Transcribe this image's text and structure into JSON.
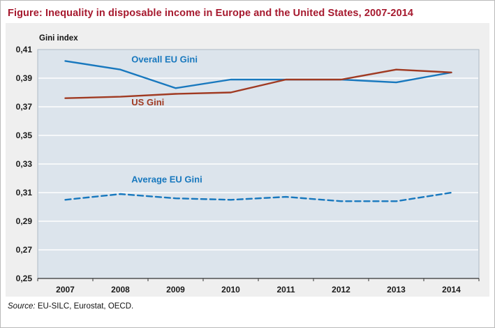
{
  "figure": {
    "title": "Figure: Inequality in disposable income in Europe and the United States, 2007-2014",
    "source_label": "Source:",
    "source_text": " EU-SILC, Eurostat, OECD."
  },
  "chart_data": {
    "type": "line",
    "title": "Figure: Inequality in disposable income in Europe and the United States, 2007-2014",
    "ylabel": "Gini index",
    "xlabel": "",
    "categories": [
      "2007",
      "2008",
      "2009",
      "2010",
      "2011",
      "2012",
      "2013",
      "2014"
    ],
    "ylim": [
      0.25,
      0.41
    ],
    "ytick_step": 0.02,
    "ytick_labels": [
      "0,25",
      "0,27",
      "0,29",
      "0,31",
      "0,33",
      "0,35",
      "0,37",
      "0,39",
      "0,41"
    ],
    "grid": "horizontal-white",
    "legend_position": "inline-labels",
    "plot_bg": "#dce4ec",
    "plot_border": "#aebac4",
    "panel_bg": "#efefef",
    "axis_color": "#333333",
    "series": [
      {
        "name": "Overall EU Gini",
        "color": "#1878be",
        "dash": "solid",
        "values": [
          0.402,
          0.396,
          0.383,
          0.389,
          0.389,
          0.389,
          0.387,
          0.394
        ],
        "label": {
          "xi": 1.2,
          "v": 0.401
        }
      },
      {
        "name": "US Gini",
        "color": "#a03a22",
        "dash": "solid",
        "values": [
          0.376,
          0.377,
          0.379,
          0.38,
          0.389,
          0.389,
          0.396,
          0.394
        ],
        "label": {
          "xi": 1.2,
          "v": 0.371
        }
      },
      {
        "name": "Average EU Gini",
        "color": "#1878be",
        "dash": "dashed",
        "values": [
          0.305,
          0.309,
          0.306,
          0.305,
          0.307,
          0.304,
          0.304,
          0.31
        ],
        "label": {
          "xi": 1.2,
          "v": 0.317
        }
      }
    ]
  }
}
